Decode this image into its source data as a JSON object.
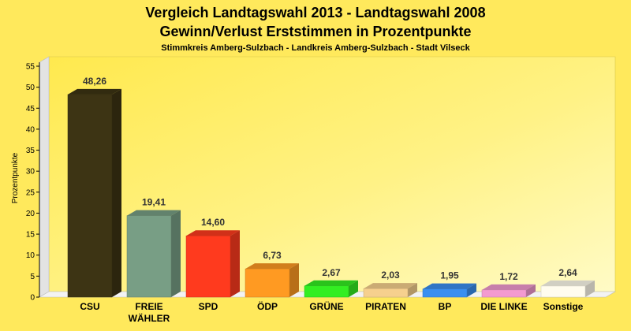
{
  "chart_data": {
    "type": "bar",
    "title": "Vergleich Landtagswahl 2013 - Landtagswahl 2008",
    "title_line2": "Gewinn/Verlust Erststimmen in Prozentpunkte",
    "subtitle": "Stimmkreis Amberg-Sulzbach - Landkreis Amberg-Sulzbach - Stadt Vilseck",
    "xlabel": "",
    "ylabel": "Prozentpunkte",
    "ylim": [
      0,
      55
    ],
    "yticks": [
      "0",
      "5",
      "10",
      "15",
      "20",
      "25",
      "30",
      "35",
      "40",
      "45",
      "50",
      "55"
    ],
    "grid": false,
    "categories": [
      "CSU",
      "FREIE WÄHLER",
      "SPD",
      "ÖDP",
      "GRÜNE",
      "PIRATEN",
      "BP",
      "DIE LINKE",
      "Sonstige"
    ],
    "category_lines": [
      [
        "CSU"
      ],
      [
        "FREIE",
        "WÄHLER"
      ],
      [
        "SPD"
      ],
      [
        "ÖDP"
      ],
      [
        "GRÜNE"
      ],
      [
        "PIRATEN"
      ],
      [
        "BP"
      ],
      [
        "DIE LINKE"
      ],
      [
        "Sonstige"
      ]
    ],
    "values": [
      48.26,
      19.41,
      14.6,
      6.73,
      2.67,
      2.03,
      1.95,
      1.72,
      2.64
    ],
    "value_labels": [
      "48,26",
      "19,41",
      "14,60",
      "6,73",
      "2,67",
      "2,03",
      "1,95",
      "1,72",
      "2,64"
    ],
    "colors": [
      "#3d3414",
      "#789e85",
      "#ff3a1e",
      "#ff9a22",
      "#33ee22",
      "#f6d08e",
      "#3a8ff0",
      "#f39ad0",
      "#fffcee"
    ]
  }
}
